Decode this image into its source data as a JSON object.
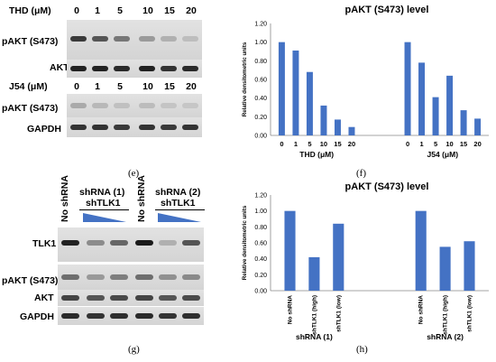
{
  "panel_e": {
    "label": "(e)",
    "thd_label": "THD (μM)",
    "thd_doses": [
      "0",
      "1",
      "5",
      "10",
      "15",
      "20"
    ],
    "j54_label": "J54 (μM)",
    "j54_doses": [
      "0",
      "1",
      "5",
      "10",
      "15",
      "20"
    ],
    "rows": [
      "pAKT (S473)",
      "AKT",
      "pAKT (S473)",
      "GAPDH"
    ]
  },
  "panel_g": {
    "label": "(g)",
    "lane_labels": [
      "No shRNA",
      "No shRNA"
    ],
    "group1": {
      "line1": "shRNA (1)",
      "line2": "shTLK1"
    },
    "group2": {
      "line1": "shRNA (2)",
      "line2": "shTLK1"
    },
    "rows": [
      "TLK1",
      "pAKT (S473)",
      "AKT",
      "GAPDH"
    ]
  },
  "chart_f_label": "(f)",
  "chart_h_label": "(h)",
  "colors": {
    "bar": "#4472C4"
  },
  "chart_data": [
    {
      "type": "bar",
      "title": "pAKT (S473) level",
      "ylabel": "Relative densitometric units",
      "ylim": [
        0,
        1.2
      ],
      "yticks": [
        "0.00",
        "0.20",
        "0.40",
        "0.60",
        "0.80",
        "1.00",
        "1.20"
      ],
      "groups": [
        {
          "name": "THD (μM)",
          "categories": [
            "0",
            "1",
            "5",
            "10",
            "15",
            "20"
          ],
          "values": [
            1.0,
            0.91,
            0.68,
            0.32,
            0.17,
            0.09
          ]
        },
        {
          "name": "J54 (μM)",
          "categories": [
            "0",
            "1",
            "5",
            "10",
            "15",
            "20"
          ],
          "values": [
            1.0,
            0.78,
            0.41,
            0.64,
            0.27,
            0.18
          ]
        }
      ]
    },
    {
      "type": "bar",
      "title": "pAKT (S473) level",
      "ylabel": "Relative densitometric units",
      "ylim": [
        0,
        1.2
      ],
      "yticks": [
        "0.00",
        "0.20",
        "0.40",
        "0.60",
        "0.80",
        "1.00",
        "1.20"
      ],
      "groups": [
        {
          "name": "shRNA (1)",
          "categories": [
            "No shRNA",
            "shTLK1 (high)",
            "shTLK1 (low)"
          ],
          "values": [
            1.0,
            0.42,
            0.84
          ]
        },
        {
          "name": "shRNA (2)",
          "categories": [
            "No shRNA",
            "shTLK1 (high)",
            "shTLK1 (low)"
          ],
          "values": [
            1.0,
            0.55,
            0.62
          ]
        }
      ]
    }
  ]
}
